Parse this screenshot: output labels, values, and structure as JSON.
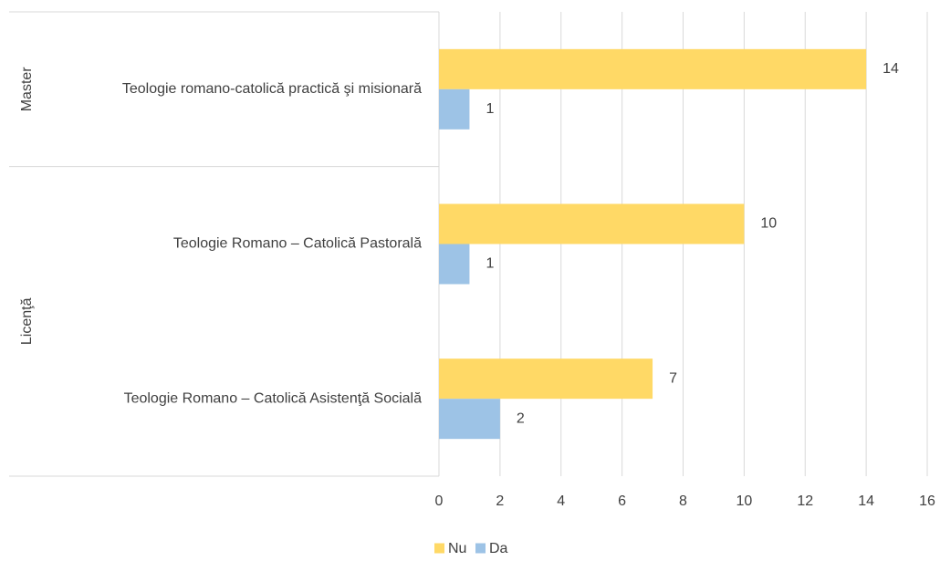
{
  "chart_data": {
    "type": "bar",
    "orientation": "horizontal",
    "groups": [
      {
        "label": "Master",
        "categories": [
          "Teologie romano-catolică practică şi misionară"
        ]
      },
      {
        "label": "Licenţă",
        "categories": [
          "Teologie Romano – Catolică Pastorală",
          "Teologie Romano – Catolică Asistenţă Socială"
        ]
      }
    ],
    "categories": [
      "Teologie romano-catolică practică şi misionară",
      "Teologie Romano – Catolică Pastorală",
      "Teologie Romano – Catolică Asistenţă Socială"
    ],
    "series": [
      {
        "name": "Nu",
        "color": "#FFD966",
        "values": [
          14,
          10,
          7
        ]
      },
      {
        "name": "Da",
        "color": "#9DC3E6",
        "values": [
          1,
          1,
          2
        ]
      }
    ],
    "xlim": [
      0,
      16
    ],
    "xticks": [
      0,
      2,
      4,
      6,
      8,
      10,
      12,
      14,
      16
    ],
    "grid": true,
    "legend_position": "bottom",
    "data_labels": true,
    "gridline_color": "#D9D9D9",
    "label_color": "#404040"
  }
}
